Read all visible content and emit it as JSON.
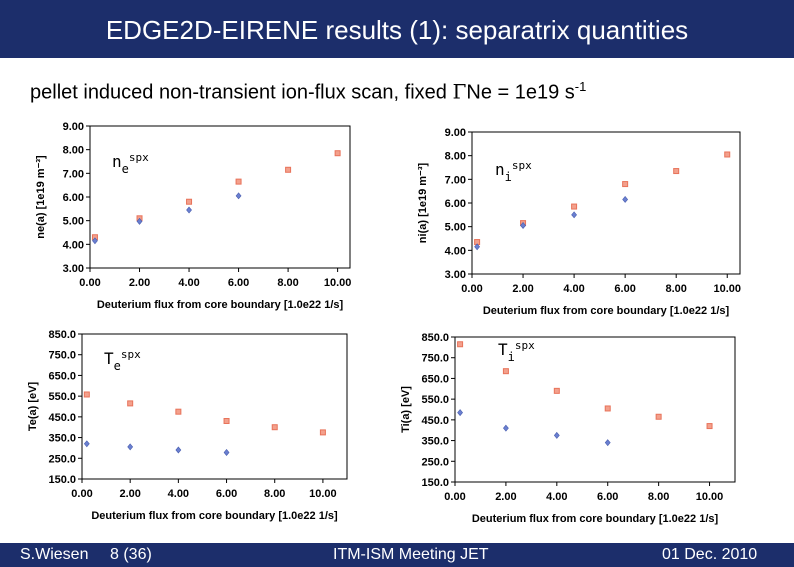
{
  "header": {
    "title": "EDGE2D-EIRENE results (1): separatrix quantities"
  },
  "subtitle": {
    "text": "pellet induced non-transient ion-flux scan, fixed",
    "symbol": "Γ",
    "species": "Ne",
    "equals": " = 1e19 s",
    "exponent": "-1"
  },
  "footer": {
    "author": "S.Wiesen",
    "page": "8 (36)",
    "event": "ITM-ISM Meeting JET",
    "date": "01 Dec. 2010"
  },
  "colors": {
    "header_bg": "#1c2e6b",
    "series_a": "#e8735a",
    "series_b": "#6a7fd0"
  },
  "chart_data": [
    {
      "id": "ne",
      "type": "scatter",
      "label": {
        "main": "n",
        "sub": "e",
        "sup": "spx"
      },
      "ylabel": "ne(a) [1e19 m⁻³]",
      "xlabel": "Deuterium flux from core boundary [1.0e22 1/s]",
      "xlim": [
        0,
        10.5
      ],
      "ylim": [
        3,
        9
      ],
      "xticks": [
        0,
        2,
        4,
        6,
        8,
        10
      ],
      "xtick_labels": [
        "0.00",
        "2.00",
        "4.00",
        "6.00",
        "8.00",
        "10.00"
      ],
      "yticks": [
        3,
        4,
        5,
        6,
        7,
        8,
        9
      ],
      "ytick_labels": [
        "3.00",
        "4.00",
        "5.00",
        "6.00",
        "7.00",
        "8.00",
        "9.00"
      ],
      "series": [
        {
          "color": "#e8735a",
          "marker": "square",
          "x": [
            0.2,
            2,
            4,
            6,
            8,
            10
          ],
          "y": [
            4.3,
            5.1,
            5.8,
            6.65,
            7.15,
            7.85
          ]
        },
        {
          "color": "#6a7fd0",
          "marker": "diamond",
          "x": [
            0.2,
            2,
            4,
            6
          ],
          "y": [
            4.15,
            4.97,
            5.45,
            6.05
          ]
        }
      ]
    },
    {
      "id": "ni",
      "type": "scatter",
      "label": {
        "main": "n",
        "sub": "i",
        "sup": "spx"
      },
      "ylabel": "ni(a) [1e19 m⁻³]",
      "xlabel": "Deuterium flux from core boundary [1.0e22 1/s]",
      "xlim": [
        0,
        10.5
      ],
      "ylim": [
        3,
        9
      ],
      "xticks": [
        0,
        2,
        4,
        6,
        8,
        10
      ],
      "xtick_labels": [
        "0.00",
        "2.00",
        "4.00",
        "6.00",
        "8.00",
        "10.00"
      ],
      "yticks": [
        3,
        4,
        5,
        6,
        7,
        8,
        9
      ],
      "ytick_labels": [
        "3.00",
        "4.00",
        "5.00",
        "6.00",
        "7.00",
        "8.00",
        "9.00"
      ],
      "series": [
        {
          "color": "#e8735a",
          "marker": "square",
          "x": [
            0.2,
            2,
            4,
            6,
            8,
            10
          ],
          "y": [
            4.35,
            5.15,
            5.85,
            6.8,
            7.35,
            8.05
          ]
        },
        {
          "color": "#6a7fd0",
          "marker": "diamond",
          "x": [
            0.2,
            2,
            4,
            6
          ],
          "y": [
            4.15,
            5.05,
            5.5,
            6.15
          ]
        }
      ]
    },
    {
      "id": "te",
      "type": "scatter",
      "label": {
        "main": "T",
        "sub": "e",
        "sup": "spx"
      },
      "ylabel": "Te(a) [eV]",
      "xlabel": "Deuterium flux from core boundary [1.0e22 1/s]",
      "xlim": [
        0,
        11
      ],
      "ylim": [
        150,
        850
      ],
      "xticks": [
        0,
        2,
        4,
        6,
        8,
        10
      ],
      "xtick_labels": [
        "0.00",
        "2.00",
        "4.00",
        "6.00",
        "8.00",
        "10.00"
      ],
      "yticks": [
        150,
        250,
        350,
        450,
        550,
        650,
        750,
        850
      ],
      "ytick_labels": [
        "150.0",
        "250.0",
        "350.0",
        "450.0",
        "550.0",
        "650.0",
        "750.0",
        "850.0"
      ],
      "series": [
        {
          "color": "#e8735a",
          "marker": "square",
          "x": [
            0.2,
            2,
            4,
            6,
            8,
            10
          ],
          "y": [
            558,
            515,
            475,
            430,
            400,
            375
          ]
        },
        {
          "color": "#6a7fd0",
          "marker": "diamond",
          "x": [
            0.2,
            2,
            4,
            6
          ],
          "y": [
            320,
            305,
            290,
            278
          ]
        }
      ]
    },
    {
      "id": "ti",
      "type": "scatter",
      "label": {
        "main": "T",
        "sub": "i",
        "sup": "spx"
      },
      "ylabel": "Ti(a) [eV]",
      "xlabel": "Deuterium flux from core boundary [1.0e22 1/s]",
      "xlim": [
        0,
        11
      ],
      "ylim": [
        150,
        850
      ],
      "xticks": [
        0,
        2,
        4,
        6,
        8,
        10
      ],
      "xtick_labels": [
        "0.00",
        "2.00",
        "4.00",
        "6.00",
        "8.00",
        "10.00"
      ],
      "yticks": [
        150,
        250,
        350,
        450,
        550,
        650,
        750,
        850
      ],
      "ytick_labels": [
        "150.0",
        "250.0",
        "350.0",
        "450.0",
        "550.0",
        "650.0",
        "750.0",
        "850.0"
      ],
      "series": [
        {
          "color": "#e8735a",
          "marker": "square",
          "x": [
            0.2,
            2,
            4,
            6,
            8,
            10
          ],
          "y": [
            815,
            685,
            590,
            505,
            465,
            420
          ]
        },
        {
          "color": "#6a7fd0",
          "marker": "diamond",
          "x": [
            0.2,
            2,
            4,
            6
          ],
          "y": [
            485,
            410,
            375,
            340
          ]
        }
      ]
    }
  ]
}
